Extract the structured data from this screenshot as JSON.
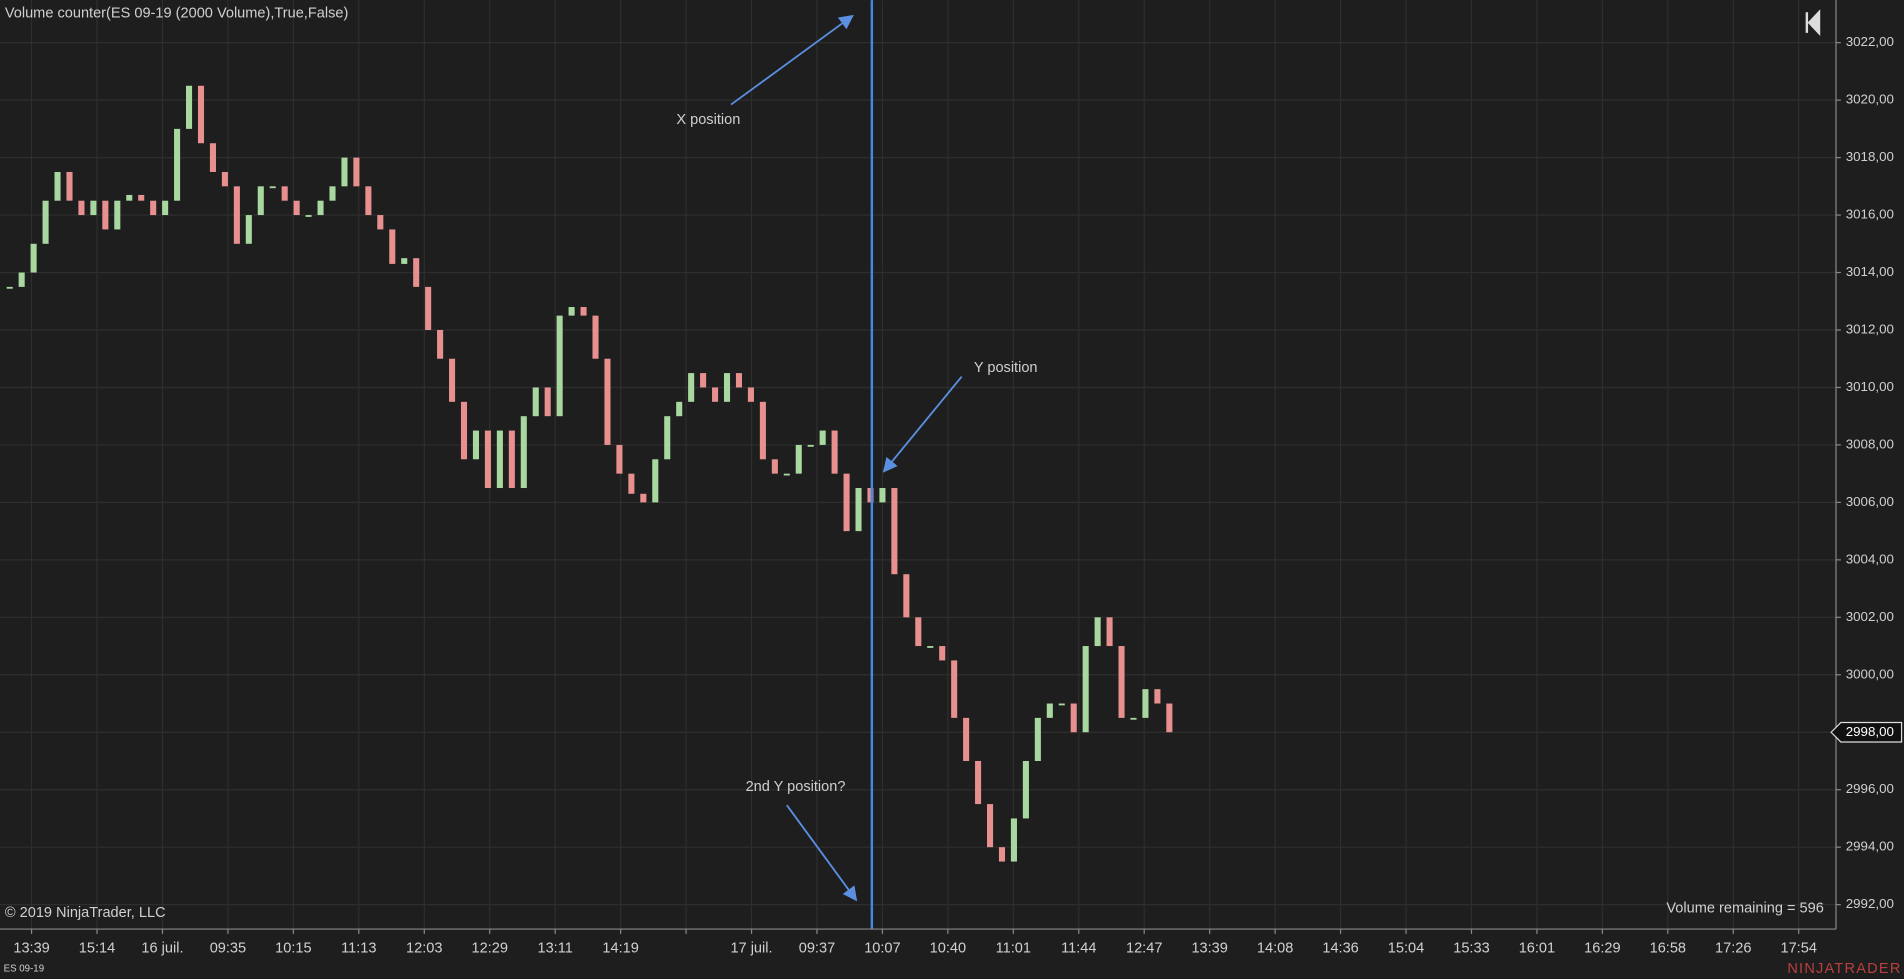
{
  "chart_data": {
    "type": "candle-close",
    "title": "Volume counter(ES 09-19 (2000 Volume),True,False)",
    "annotations": [
      "X position",
      "Y position",
      "2nd Y position?"
    ],
    "copyright": "© 2019 NinjaTrader, LLC",
    "status": "Volume remaining = 596",
    "instrument": "ES 09-19",
    "brand": "NINJATRADER",
    "up_color": "#a8d8a0",
    "down_color": "#e89090",
    "grid": true,
    "x_labels": [
      "13:39",
      "15:14",
      "16 juil.",
      "09:35",
      "10:15",
      "11:13",
      "12:03",
      "12:29",
      "13:11",
      "14:19",
      null,
      "17 juil.",
      "09:37",
      "10:07",
      "10:40",
      "11:01",
      "11:44",
      "12:47",
      "13:39",
      "14:08",
      "14:36",
      "15:04",
      "15:33",
      "16:01",
      "16:29",
      "16:58",
      "17:26",
      "17:54"
    ],
    "values": [
      3013.5,
      3014,
      3015,
      3016.5,
      3017.5,
      3016.5,
      3016,
      3016.5,
      3015.5,
      3016.5,
      3016.7,
      3016.5,
      3016,
      3016.5,
      3019,
      3020.5,
      3018.5,
      3017.5,
      3017,
      3015,
      3016,
      3017,
      3017,
      3016.5,
      3016,
      3016,
      3016.5,
      3017,
      3018,
      3017,
      3016,
      3015.5,
      3014.3,
      3014.5,
      3013.5,
      3012,
      3011,
      3009.5,
      3007.5,
      3008.5,
      3006.5,
      3008.5,
      3006.5,
      3009,
      3010,
      3009,
      3012.5,
      3012.8,
      3012.5,
      3011,
      3008,
      3007,
      3006.3,
      3006,
      3007.5,
      3009,
      3009.5,
      3010.5,
      3010,
      3009.5,
      3010.5,
      3010,
      3009.5,
      3007.5,
      3007,
      3007,
      3008,
      3008,
      3008.5,
      3007,
      3005,
      3006.5,
      3006,
      3006.5,
      3003.5,
      3002,
      3001,
      3001,
      3000.5,
      2998.5,
      2997,
      2995.5,
      2994,
      2993.5,
      2995,
      2997,
      2998.5,
      2999,
      2999,
      2998,
      3001,
      3002,
      3001,
      2998.5,
      2998.5,
      2999.5,
      2999,
      2998
    ],
    "last_price": {
      "value": 2998,
      "label": "2998,00"
    },
    "ylim": [
      2991.15,
      3023.48
    ],
    "yticks": [
      {
        "value": 2992,
        "label": "2992,00"
      },
      {
        "value": 2994,
        "label": "2994,00"
      },
      {
        "value": 2996,
        "label": "2996,00"
      },
      {
        "value": 2998,
        "label": "2998,00"
      },
      {
        "value": 3000,
        "label": "3000,00"
      },
      {
        "value": 3002,
        "label": "3002,00"
      },
      {
        "value": 3004,
        "label": "3004,00"
      },
      {
        "value": 3006,
        "label": "3006,00"
      },
      {
        "value": 3008,
        "label": "3008,00"
      },
      {
        "value": 3010,
        "label": "3010,00"
      },
      {
        "value": 3012,
        "label": "3012,00"
      },
      {
        "value": 3014,
        "label": "3014,00"
      },
      {
        "value": 3016,
        "label": "3016,00"
      },
      {
        "value": 3018,
        "label": "3018,00"
      },
      {
        "value": 3020,
        "label": "3020,00"
      },
      {
        "value": 3022,
        "label": "3022,00"
      }
    ]
  }
}
